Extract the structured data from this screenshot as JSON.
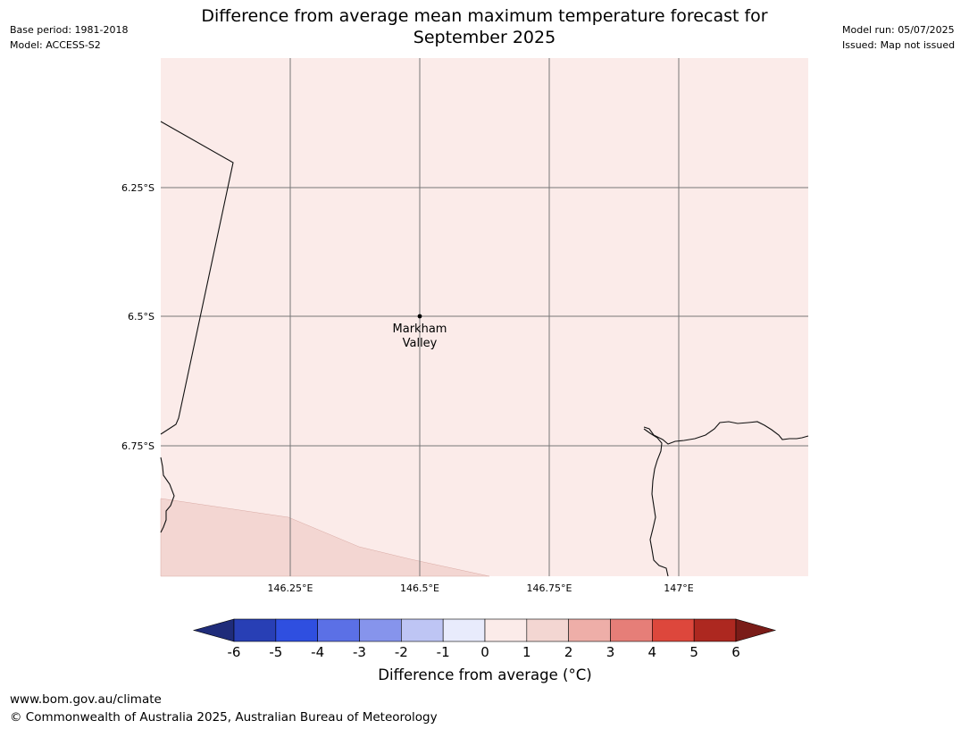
{
  "meta": {
    "base_period": "Base period: 1981-2018",
    "model": "Model: ACCESS-S2",
    "model_run": "Model run: 05/07/2025",
    "issued": "Issued: Map not issued"
  },
  "title": {
    "line1": "Difference from average mean maximum temperature forecast for",
    "line2": "September 2025"
  },
  "map": {
    "lat_ticks": [
      "6.25°S",
      "6.5°S",
      "6.75°S"
    ],
    "lon_ticks": [
      "146.25°E",
      "146.5°E",
      "146.75°E",
      "147°E"
    ],
    "place": {
      "line1": "Markham",
      "line2": "Valley"
    },
    "fill_colors": {
      "category_0_1": "#fbebe9",
      "category_1_2": "#f3d6d2"
    }
  },
  "colorbar": {
    "label": "Difference from average (°C)",
    "ticks": [
      "-6",
      "-5",
      "-4",
      "-3",
      "-2",
      "-1",
      "0",
      "1",
      "2",
      "3",
      "4",
      "5",
      "6"
    ],
    "colors": [
      "#1f2c7a",
      "#283fb5",
      "#2f4fe0",
      "#5b70e6",
      "#8694ec",
      "#bec5f4",
      "#e8ebfc",
      "#fbebe9",
      "#f3d6d2",
      "#eeaea8",
      "#e67e78",
      "#dd473c",
      "#ad2820",
      "#7a1c18"
    ]
  },
  "footer": {
    "url": "www.bom.gov.au/climate",
    "copyright": "© Commonwealth of Australia 2025, Australian Bureau of Meteorology"
  }
}
